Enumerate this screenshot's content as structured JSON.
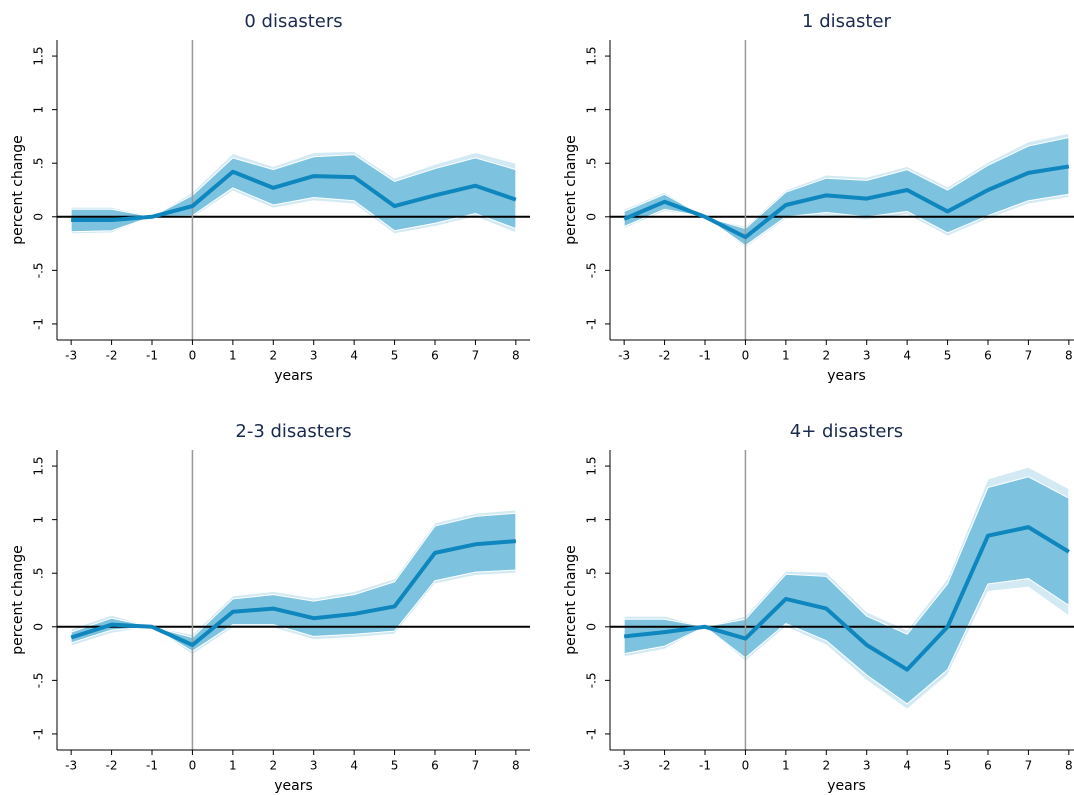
{
  "chart_data": [
    {
      "type": "line",
      "title": "0 disasters",
      "xlabel": "years",
      "ylabel": "percent change",
      "x": [
        -3,
        -2,
        -1,
        0,
        1,
        2,
        3,
        4,
        5,
        6,
        7,
        8
      ],
      "values": [
        -0.03,
        -0.03,
        0,
        0.1,
        0.42,
        0.27,
        0.38,
        0.37,
        0.1,
        0.2,
        0.29,
        0.16
      ],
      "color": "#0f86bd",
      "bands": [
        {
          "color": "#d3eaf4",
          "lower": [
            -0.16,
            -0.15,
            0,
            -0.01,
            0.24,
            0.08,
            0.15,
            0.12,
            -0.16,
            -0.09,
            0,
            -0.15
          ],
          "upper": [
            0.09,
            0.09,
            0,
            0.23,
            0.59,
            0.47,
            0.6,
            0.61,
            0.36,
            0.49,
            0.6,
            0.5
          ]
        },
        {
          "color": "#7dc3df",
          "lower": [
            -0.14,
            -0.13,
            0,
            0.01,
            0.27,
            0.11,
            0.18,
            0.15,
            -0.13,
            -0.06,
            0.03,
            -0.11
          ],
          "upper": [
            0.07,
            0.07,
            0,
            0.2,
            0.55,
            0.44,
            0.56,
            0.58,
            0.33,
            0.45,
            0.55,
            0.44
          ]
        }
      ],
      "xlim": [
        -3.35,
        8.35
      ],
      "ylim": [
        -1.15,
        1.65
      ],
      "xticks": [
        -3,
        -2,
        -1,
        0,
        1,
        2,
        3,
        4,
        5,
        6,
        7,
        8
      ],
      "yticks": [
        -1,
        {
          "value": -0.5,
          "label": "-.5"
        },
        0,
        {
          "value": 0.5,
          "label": ".5"
        },
        1,
        1.5
      ],
      "hline": 0,
      "vline": 0
    },
    {
      "type": "line",
      "title": "1 disaster",
      "xlabel": "years",
      "ylabel": "percent change",
      "x": [
        -3,
        -2,
        -1,
        0,
        1,
        2,
        3,
        4,
        5,
        6,
        7,
        8
      ],
      "values": [
        -0.02,
        0.14,
        0,
        -0.19,
        0.11,
        0.2,
        0.17,
        0.25,
        0.05,
        0.25,
        0.41,
        0.47
      ],
      "color": "#0f86bd",
      "bands": [
        {
          "color": "#d3eaf4",
          "lower": [
            -0.11,
            0.05,
            0,
            -0.29,
            -0.02,
            0.01,
            -0.03,
            0.02,
            -0.18,
            -0.02,
            0.12,
            0.18
          ],
          "upper": [
            0.07,
            0.23,
            0,
            -0.09,
            0.25,
            0.39,
            0.37,
            0.47,
            0.28,
            0.51,
            0.7,
            0.78
          ]
        },
        {
          "color": "#7dc3df",
          "lower": [
            -0.09,
            0.07,
            0,
            -0.27,
            0,
            0.04,
            0,
            0.05,
            -0.15,
            0.01,
            0.15,
            0.21
          ],
          "upper": [
            0.05,
            0.21,
            0,
            -0.11,
            0.23,
            0.36,
            0.34,
            0.44,
            0.25,
            0.48,
            0.66,
            0.74
          ]
        }
      ],
      "xlim": [
        -3.35,
        8.35
      ],
      "ylim": [
        -1.15,
        1.65
      ],
      "xticks": [
        -3,
        -2,
        -1,
        0,
        1,
        2,
        3,
        4,
        5,
        6,
        7,
        8
      ],
      "yticks": [
        -1,
        {
          "value": -0.5,
          "label": "-.5"
        },
        0,
        {
          "value": 0.5,
          "label": ".5"
        },
        1,
        1.5
      ],
      "hline": 0,
      "vline": 0
    },
    {
      "type": "line",
      "title": "2-3 disasters",
      "xlabel": "years",
      "ylabel": "percent change",
      "x": [
        -3,
        -2,
        -1,
        0,
        1,
        2,
        3,
        4,
        5,
        6,
        7,
        8
      ],
      "values": [
        -0.1,
        0.02,
        0,
        -0.17,
        0.14,
        0.17,
        0.08,
        0.12,
        0.19,
        0.69,
        0.77,
        0.8
      ],
      "color": "#0f86bd",
      "bands": [
        {
          "color": "#d3eaf4",
          "lower": [
            -0.18,
            -0.06,
            0,
            -0.26,
            -0.01,
            -0.01,
            -0.12,
            -0.1,
            -0.07,
            0.4,
            0.48,
            0.5
          ],
          "upper": [
            -0.02,
            0.11,
            0,
            -0.07,
            0.29,
            0.33,
            0.27,
            0.33,
            0.45,
            0.97,
            1.06,
            1.09
          ]
        },
        {
          "color": "#7dc3df",
          "lower": [
            -0.15,
            -0.03,
            0,
            -0.23,
            0.02,
            0.02,
            -0.09,
            -0.07,
            -0.04,
            0.43,
            0.51,
            0.53
          ],
          "upper": [
            -0.05,
            0.08,
            0,
            -0.1,
            0.26,
            0.3,
            0.24,
            0.3,
            0.42,
            0.94,
            1.03,
            1.06
          ]
        }
      ],
      "xlim": [
        -3.35,
        8.35
      ],
      "ylim": [
        -1.15,
        1.65
      ],
      "xticks": [
        -3,
        -2,
        -1,
        0,
        1,
        2,
        3,
        4,
        5,
        6,
        7,
        8
      ],
      "yticks": [
        -1,
        {
          "value": -0.5,
          "label": "-.5"
        },
        0,
        {
          "value": 0.5,
          "label": ".5"
        },
        1,
        1.5
      ],
      "hline": 0,
      "vline": 0
    },
    {
      "type": "line",
      "title": "4+ disasters",
      "xlabel": "years",
      "ylabel": "percent change",
      "x": [
        -3,
        -2,
        -1,
        0,
        1,
        2,
        3,
        4,
        5,
        6,
        7,
        8
      ],
      "values": [
        -0.09,
        -0.05,
        0,
        -0.11,
        0.26,
        0.17,
        -0.17,
        -0.4,
        0,
        0.85,
        0.93,
        0.7
      ],
      "color": "#0f86bd",
      "bands": [
        {
          "color": "#d3eaf4",
          "lower": [
            -0.28,
            -0.21,
            0,
            -0.32,
            0,
            -0.17,
            -0.5,
            -0.77,
            -0.45,
            0.33,
            0.37,
            0.1
          ],
          "upper": [
            0.1,
            0.1,
            0,
            0.1,
            0.52,
            0.51,
            0.14,
            -0.03,
            0.45,
            1.38,
            1.49,
            1.29
          ]
        },
        {
          "color": "#7dc3df",
          "lower": [
            -0.25,
            -0.18,
            0,
            -0.29,
            0.03,
            -0.13,
            -0.45,
            -0.72,
            -0.4,
            0.4,
            0.45,
            0.2
          ],
          "upper": [
            0.07,
            0.07,
            0,
            0.07,
            0.49,
            0.47,
            0.1,
            -0.07,
            0.4,
            1.3,
            1.4,
            1.2
          ]
        }
      ],
      "xlim": [
        -3.35,
        8.35
      ],
      "ylim": [
        -1.15,
        1.65
      ],
      "xticks": [
        -3,
        -2,
        -1,
        0,
        1,
        2,
        3,
        4,
        5,
        6,
        7,
        8
      ],
      "yticks": [
        -1,
        {
          "value": -0.5,
          "label": "-.5"
        },
        0,
        {
          "value": 0.5,
          "label": ".5"
        },
        1,
        1.5
      ],
      "hline": 0,
      "vline": 0
    }
  ]
}
